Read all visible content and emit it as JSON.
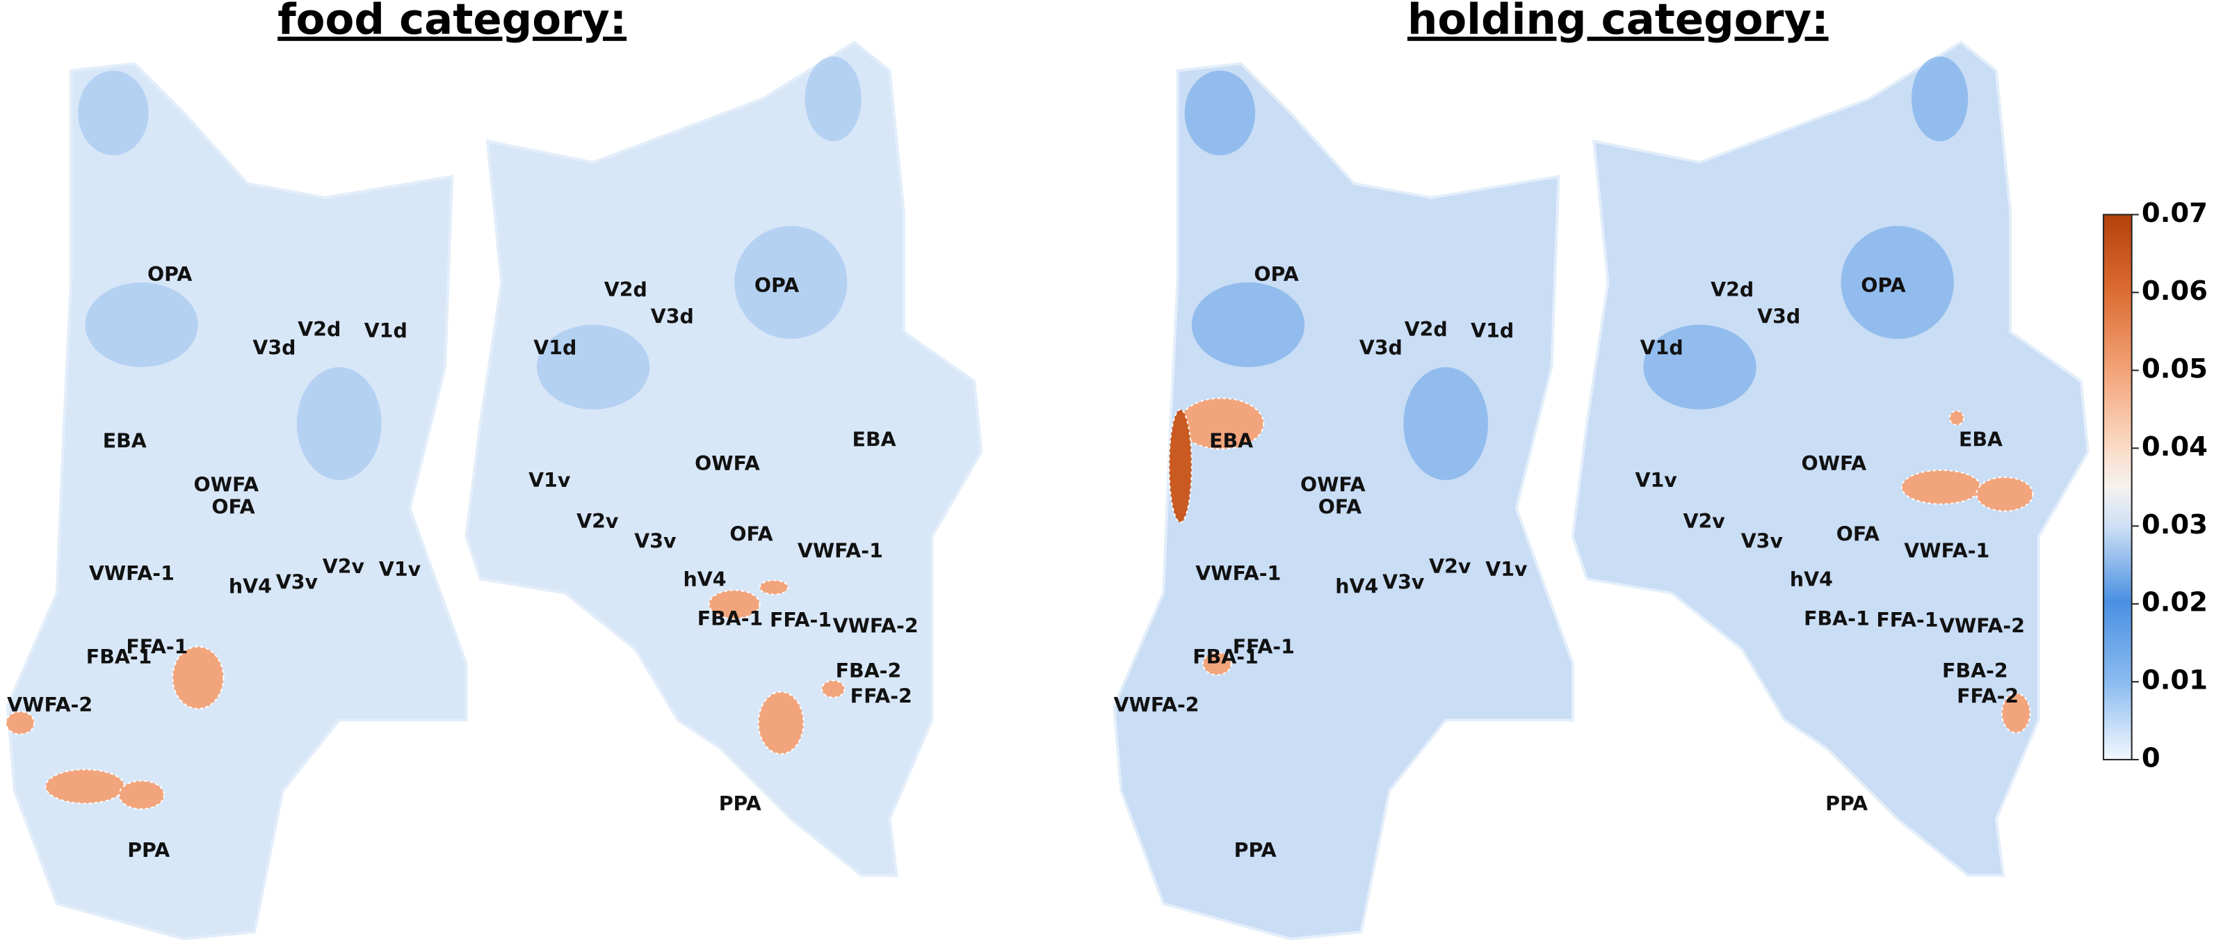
{
  "panels": [
    {
      "title": "food category:",
      "hemispheres": [
        {
          "labels": [
            "OPA",
            "V3d",
            "V2d",
            "V1d",
            "EBA",
            "OWFA",
            "OFA",
            "VWFA-1",
            "hV4",
            "V3v",
            "V2v",
            "V1v",
            "FFA-1",
            "FBA-1",
            "VWFA-2",
            "PPA"
          ]
        },
        {
          "labels": [
            "V2d",
            "V3d",
            "OPA",
            "V1d",
            "EBA",
            "OWFA",
            "V1v",
            "V2v",
            "V3v",
            "OFA",
            "VWFA-1",
            "hV4",
            "FBA-1",
            "FFA-1",
            "VWFA-2",
            "FBA-2",
            "FFA-2",
            "PPA"
          ]
        }
      ]
    },
    {
      "title": "holding category:",
      "hemispheres": [
        {
          "labels": [
            "OPA",
            "V3d",
            "V2d",
            "V1d",
            "EBA",
            "OWFA",
            "OFA",
            "VWFA-1",
            "hV4",
            "V3v",
            "V2v",
            "V1v",
            "FFA-1",
            "FBA-1",
            "VWFA-2",
            "PPA"
          ]
        },
        {
          "labels": [
            "V2d",
            "V3d",
            "OPA",
            "V1d",
            "EBA",
            "OWFA",
            "V1v",
            "V2v",
            "V3v",
            "OFA",
            "VWFA-1",
            "hV4",
            "FBA-1",
            "FFA-1",
            "VWFA-2",
            "FBA-2",
            "FFA-2",
            "PPA"
          ]
        }
      ]
    }
  ],
  "colorbar": {
    "lim": [
      0,
      0.07
    ],
    "ticks": [
      0,
      0.01,
      0.02,
      0.03,
      0.04,
      0.05,
      0.06,
      0.07
    ]
  }
}
